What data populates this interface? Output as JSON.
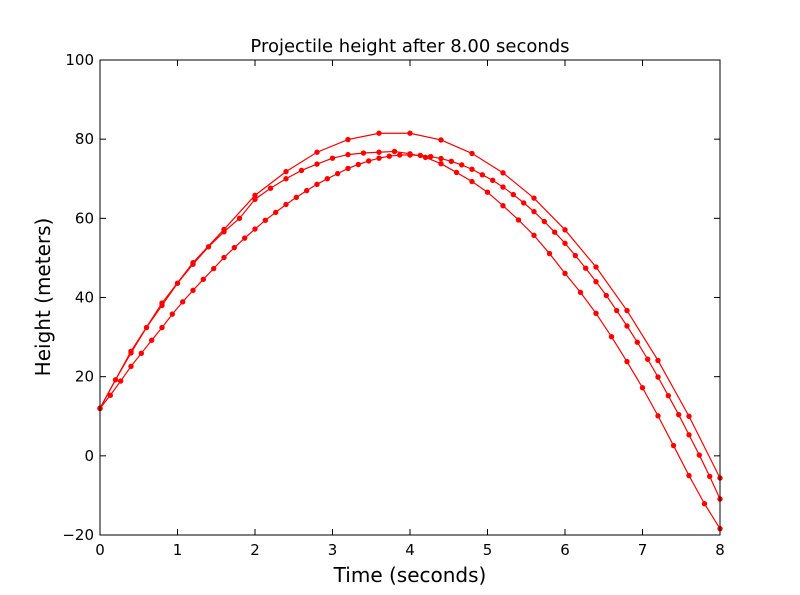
{
  "chart_data": {
    "type": "line",
    "title": "Projectile height after 8.00 seconds",
    "xlabel": "Time (seconds)",
    "ylabel": "Height (meters)",
    "xlim": [
      0,
      8
    ],
    "ylim": [
      -20,
      100
    ],
    "xticks": [
      0,
      1,
      2,
      3,
      4,
      5,
      6,
      7,
      8
    ],
    "yticks": [
      -20,
      0,
      20,
      40,
      60,
      80,
      100
    ],
    "ytick_labels": [
      "−20",
      "0",
      "20",
      "40",
      "60",
      "80",
      "100"
    ],
    "grid": false,
    "line_color": "#ff0000",
    "series": [
      {
        "x": [
          0,
          0.4,
          0.8,
          1.2,
          1.6,
          2.0,
          2.4,
          2.8,
          3.2,
          3.6,
          4.0,
          4.4,
          4.8,
          5.2,
          5.6,
          6.0,
          6.4,
          6.8,
          7.2,
          7.6,
          8.0
        ],
        "y": [
          12.0,
          26.4,
          38.6,
          48.8,
          57.2,
          65.8,
          71.8,
          76.7,
          79.9,
          81.5,
          81.5,
          79.8,
          76.4,
          71.5,
          65.1,
          57.1,
          47.7,
          36.7,
          24.1,
          10.0,
          -5.6
        ]
      },
      {
        "x": [
          0,
          0.2,
          0.4,
          0.6,
          0.8,
          1.0,
          1.2,
          1.4,
          1.6,
          1.8,
          2.0,
          2.2,
          2.4,
          2.6,
          2.8,
          3.0,
          3.2,
          3.4,
          3.6,
          3.8,
          4.0,
          4.2,
          4.4,
          4.6,
          4.8,
          5.0,
          5.2,
          5.4,
          5.6,
          5.8,
          6.0,
          6.2,
          6.4,
          6.6,
          6.8,
          7.0,
          7.2,
          7.4,
          7.6,
          7.8,
          8.0
        ],
        "y": [
          12.0,
          19.2,
          26.0,
          32.4,
          38.0,
          43.6,
          48.4,
          52.8,
          56.6,
          60.0,
          64.8,
          67.6,
          70.0,
          72.1,
          73.7,
          75.2,
          76.1,
          76.5,
          76.7,
          76.9,
          76.3,
          75.4,
          73.8,
          71.6,
          69.3,
          66.6,
          63.2,
          59.6,
          55.7,
          51.1,
          46.1,
          41.3,
          36.0,
          30.1,
          23.8,
          17.2,
          10.1,
          2.6,
          -5.0,
          -12.1,
          -18.4
        ]
      },
      {
        "x": [
          0,
          0.133,
          0.267,
          0.4,
          0.533,
          0.667,
          0.8,
          0.933,
          1.067,
          1.2,
          1.333,
          1.467,
          1.6,
          1.733,
          1.867,
          2.0,
          2.133,
          2.267,
          2.4,
          2.533,
          2.667,
          2.8,
          2.933,
          3.067,
          3.2,
          3.333,
          3.467,
          3.6,
          3.733,
          3.867,
          4.0,
          4.133,
          4.267,
          4.4,
          4.533,
          4.667,
          4.8,
          4.933,
          5.067,
          5.2,
          5.333,
          5.467,
          5.6,
          5.733,
          5.867,
          6.0,
          6.133,
          6.267,
          6.4,
          6.533,
          6.667,
          6.8,
          6.933,
          7.067,
          7.2,
          7.333,
          7.467,
          7.6,
          7.733,
          7.867,
          8.0
        ],
        "y": [
          12.0,
          15.3,
          18.9,
          22.6,
          25.9,
          29.2,
          32.4,
          35.8,
          38.9,
          41.8,
          44.6,
          47.3,
          50.1,
          52.6,
          55.0,
          57.3,
          59.5,
          61.5,
          63.5,
          65.3,
          67.0,
          68.6,
          70.0,
          71.3,
          72.6,
          73.6,
          74.5,
          75.2,
          75.7,
          76.0,
          76.0,
          75.9,
          75.6,
          75.1,
          74.4,
          73.5,
          72.4,
          71.0,
          69.6,
          67.9,
          66.0,
          63.9,
          61.7,
          59.2,
          56.5,
          53.7,
          50.6,
          47.4,
          44.0,
          40.5,
          36.7,
          32.8,
          28.7,
          24.4,
          19.9,
          15.2,
          10.4,
          5.3,
          0.2,
          -5.2,
          -10.9
        ]
      }
    ]
  }
}
